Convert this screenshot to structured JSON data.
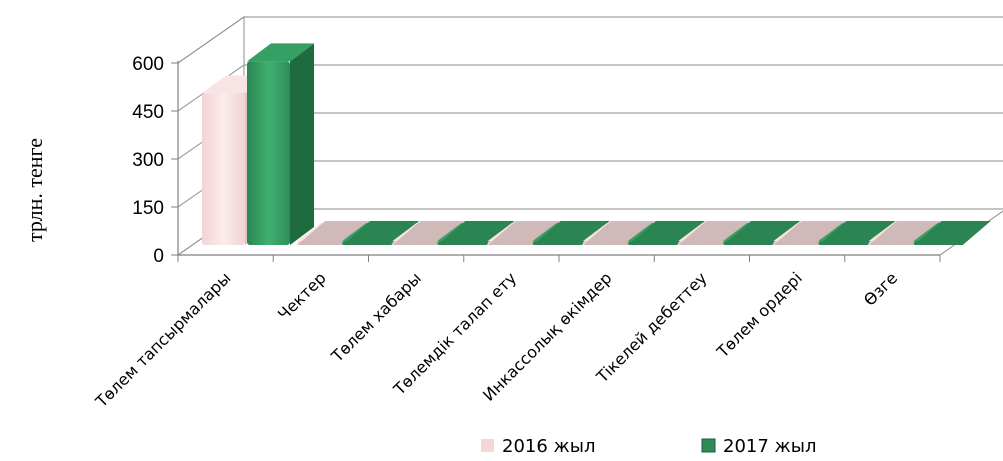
{
  "chart_data": {
    "type": "bar",
    "ylabel": "трлн. тенге",
    "ylim": [
      0,
      600
    ],
    "yticks": [
      "0",
      "150",
      "300",
      "450",
      "600"
    ],
    "categories": [
      "Төлем тапсырмалары",
      "Чектер",
      "Төлем хабары",
      "Төлемдік талап ету",
      "Инкассолық өкімдер",
      "Тікелей  дебеттеу",
      "Төлем ордері",
      "Өзге"
    ],
    "series": [
      {
        "name": "2016 жыл",
        "color": "#F4D8D8",
        "values": [
          505,
          1,
          2,
          1,
          1,
          6,
          12,
          5
        ]
      },
      {
        "name": "2017 жыл",
        "color": "#2E8B57",
        "values": [
          605,
          1,
          2,
          1,
          1,
          5,
          22,
          8
        ]
      }
    ],
    "grid": true,
    "legend": "bottom"
  }
}
